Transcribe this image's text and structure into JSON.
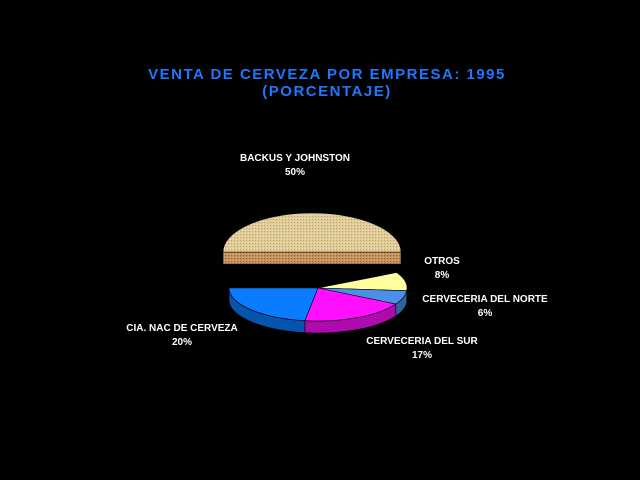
{
  "chart_data": {
    "type": "pie",
    "title": "VENTA DE CERVEZA POR EMPRESA: 1995",
    "subtitle": "(PORCENTAJE)",
    "style": "3d-exploded",
    "title_color": "#1e78ff",
    "slices": [
      {
        "label": "BACKUS Y JOHNSTON",
        "value": 50,
        "value_label": "50%",
        "color": "#e0cc98",
        "exploded": true
      },
      {
        "label": "OTROS",
        "value": 8,
        "value_label": "8%",
        "color": "#ffff9e",
        "exploded": false
      },
      {
        "label": "CERVECERIA DEL NORTE",
        "value": 6,
        "value_label": "6%",
        "color": "#4a90e8",
        "exploded": false
      },
      {
        "label": "CERVECERIA DEL SUR",
        "value": 17,
        "value_label": "17%",
        "color": "#ff10ff",
        "exploded": false
      },
      {
        "label": "CIA. NAC DE CERVEZA",
        "value": 20,
        "value_label": "20%",
        "color": "#0a7cff",
        "exploded": false
      }
    ]
  }
}
